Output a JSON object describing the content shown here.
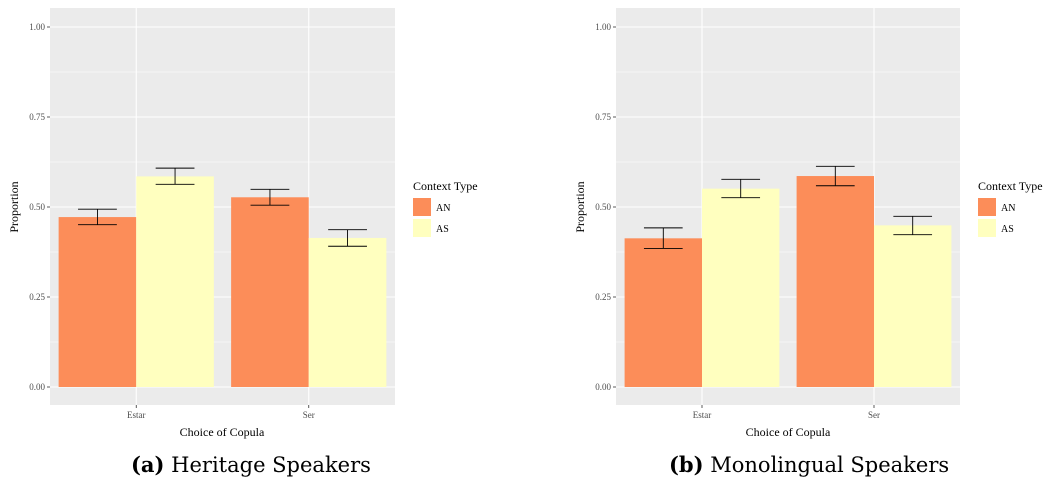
{
  "colors": {
    "AN": "#fc8d59",
    "AS": "#ffffbf",
    "panel": "#ebebeb",
    "grid": "#ffffff"
  },
  "chart_data": [
    {
      "type": "bar",
      "categories": [
        "Estar",
        "Ser"
      ],
      "series": [
        {
          "name": "AN",
          "values": [
            0.472,
            0.527
          ],
          "errors": [
            [
              0.451,
              0.494
            ],
            [
              0.505,
              0.549
            ]
          ]
        },
        {
          "name": "AS",
          "values": [
            0.585,
            0.414
          ],
          "errors": [
            [
              0.563,
              0.608
            ],
            [
              0.391,
              0.437
            ]
          ]
        }
      ],
      "ylim": [
        0,
        1
      ],
      "yticks": [
        "0.00",
        "0.25",
        "0.50",
        "0.75",
        "1.00"
      ],
      "xlabel": "Choice of Copula",
      "ylabel": "Proportion",
      "legend_title": "Context Type",
      "legend_position": "right",
      "grid": true,
      "caption_tag": "(a)",
      "caption_text": "Heritage Speakers"
    },
    {
      "type": "bar",
      "categories": [
        "Estar",
        "Ser"
      ],
      "series": [
        {
          "name": "AN",
          "values": [
            0.413,
            0.586
          ],
          "errors": [
            [
              0.385,
              0.442
            ],
            [
              0.559,
              0.613
            ]
          ]
        },
        {
          "name": "AS",
          "values": [
            0.551,
            0.449
          ],
          "errors": [
            [
              0.526,
              0.577
            ],
            [
              0.423,
              0.474
            ]
          ]
        }
      ],
      "ylim": [
        0,
        1
      ],
      "yticks": [
        "0.00",
        "0.25",
        "0.50",
        "0.75",
        "1.00"
      ],
      "xlabel": "Choice of Copula",
      "ylabel": "Proportion",
      "legend_title": "Context Type",
      "legend_position": "right",
      "grid": true,
      "caption_tag": "(b)",
      "caption_text": "Monolingual Speakers"
    }
  ]
}
